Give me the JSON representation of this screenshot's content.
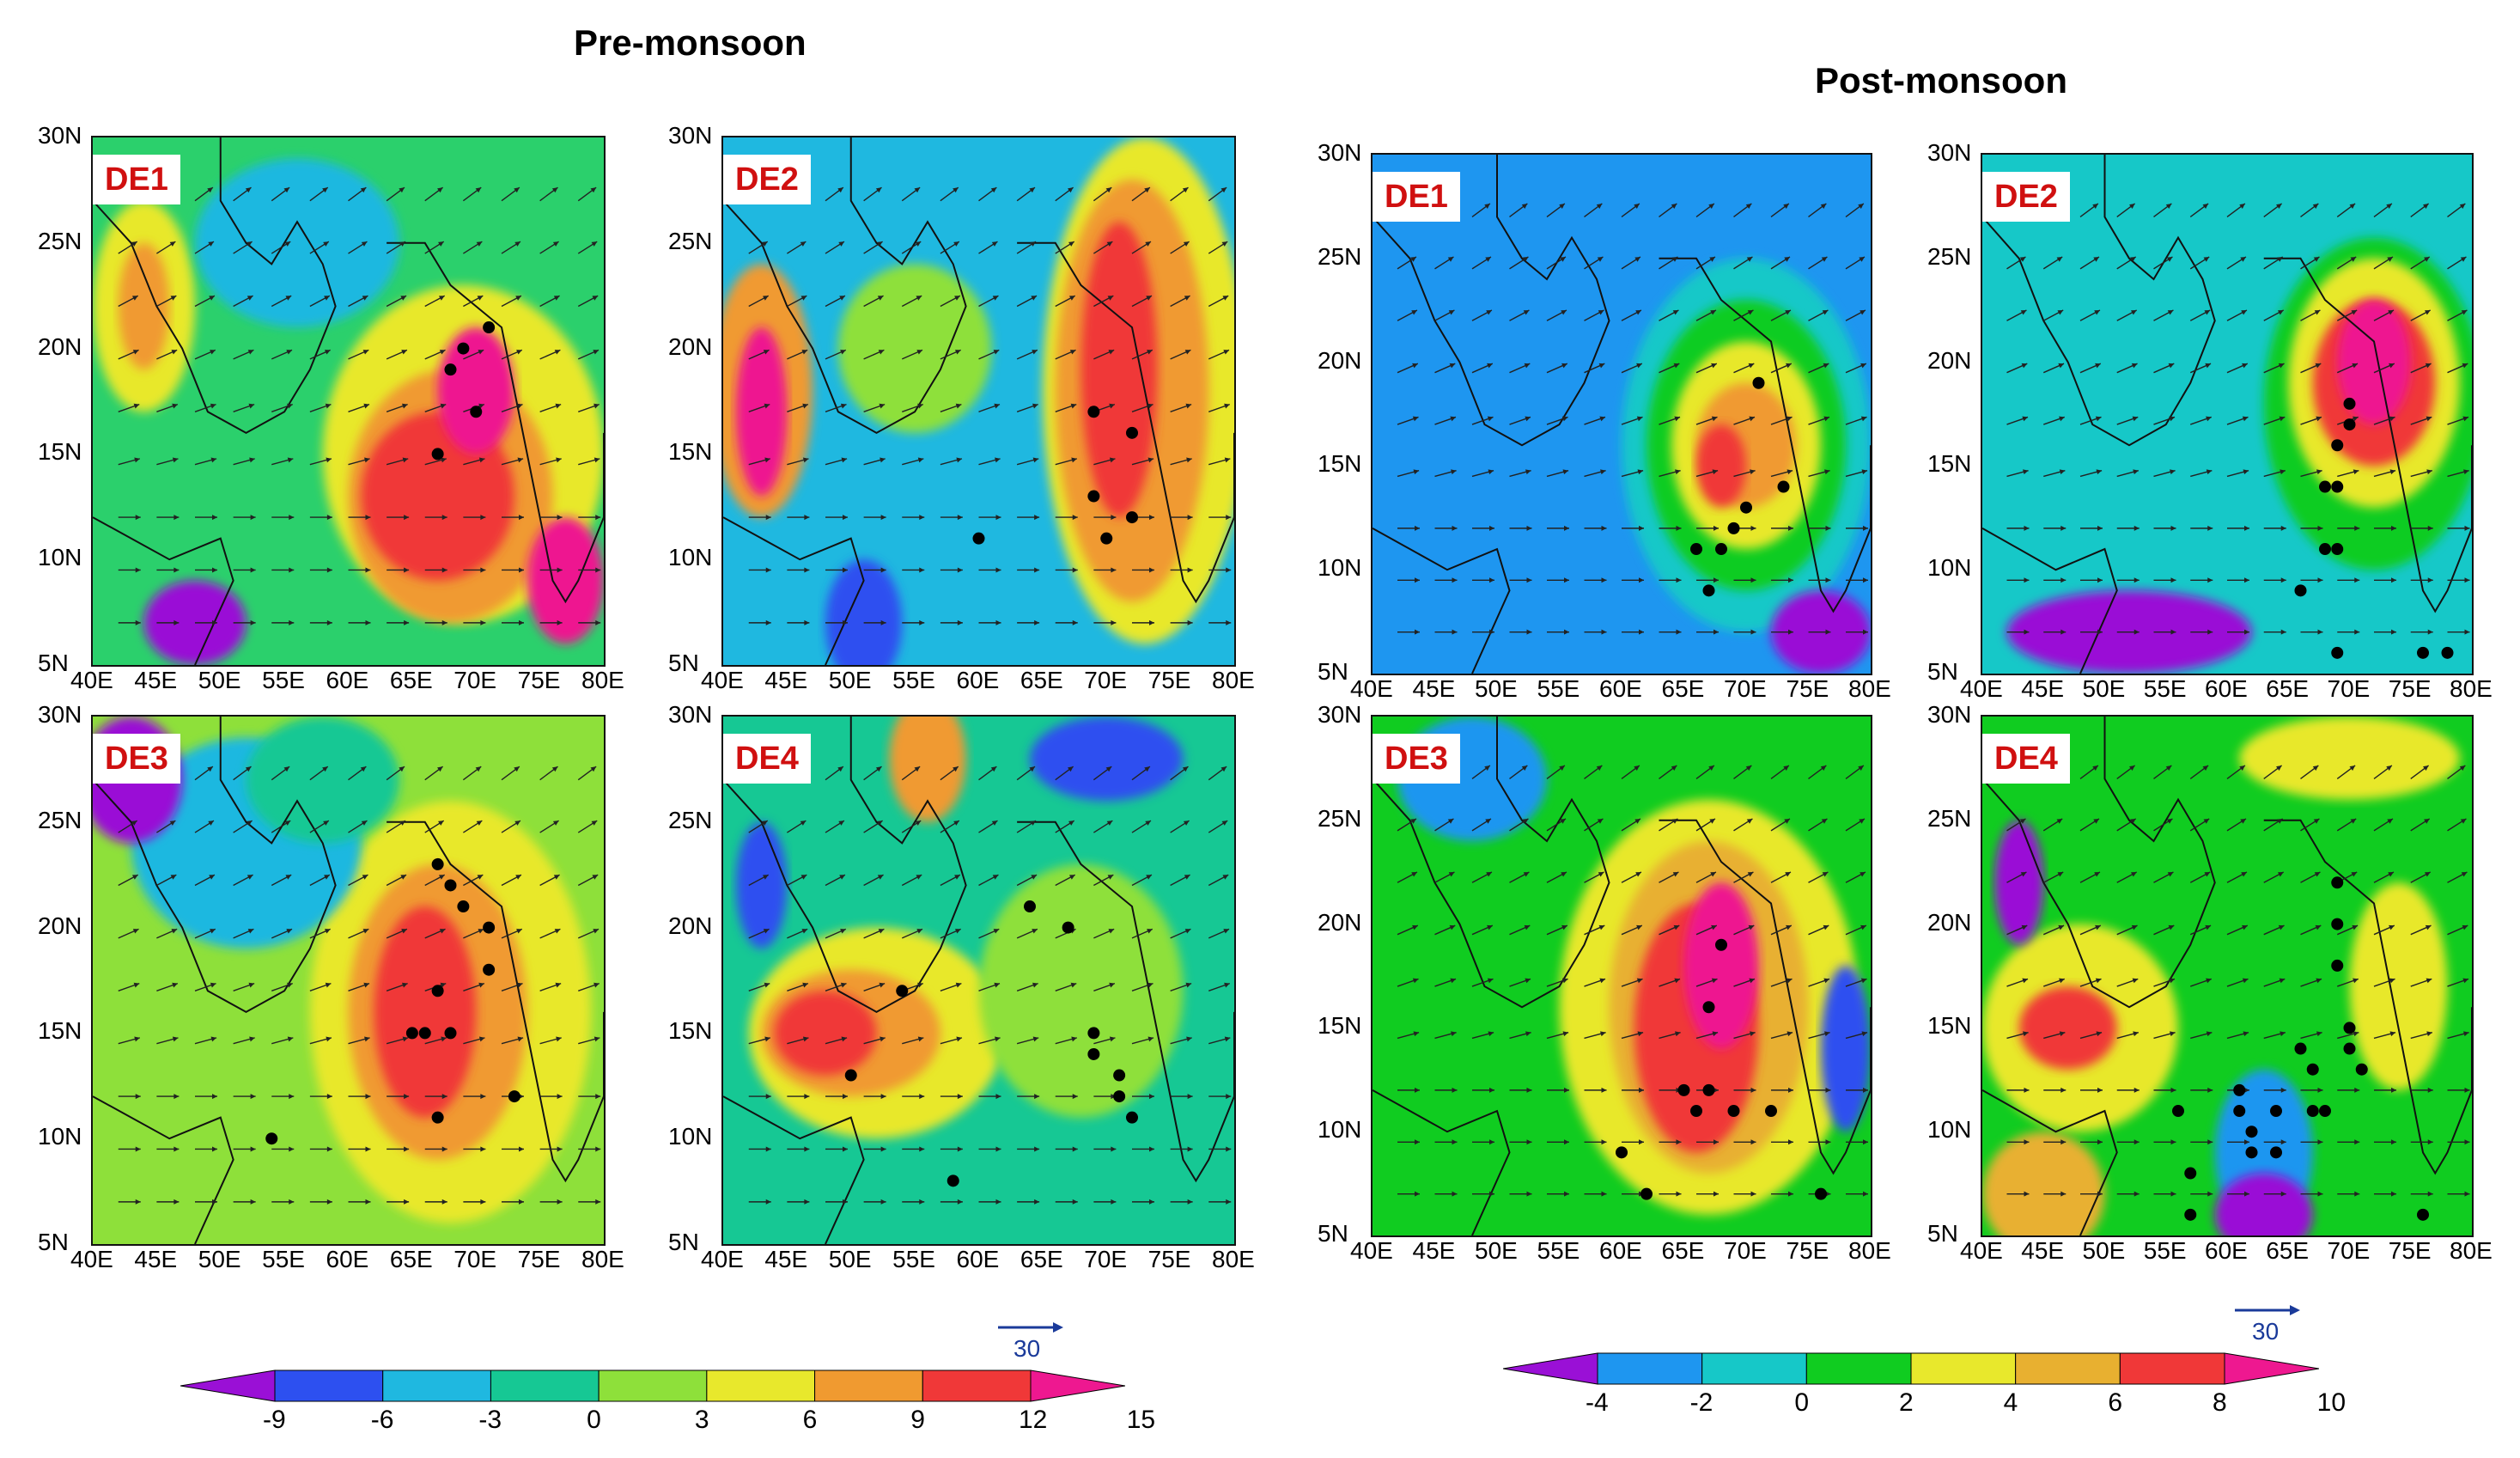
{
  "titles": {
    "pre": "Pre-monsoon",
    "post": "Post-monsoon"
  },
  "x_ticks": [
    "40E",
    "45E",
    "50E",
    "55E",
    "60E",
    "65E",
    "70E",
    "75E",
    "80E"
  ],
  "y_ticks": [
    "30N",
    "25N",
    "20N",
    "15N",
    "10N",
    "5N"
  ],
  "lon_range": [
    40,
    80
  ],
  "lat_range": [
    5,
    30
  ],
  "reference_vector": {
    "label": "30"
  },
  "colorbars": {
    "pre": {
      "labels": [
        "-9",
        "-6",
        "-3",
        "0",
        "3",
        "6",
        "9",
        "12",
        "15"
      ],
      "colors": [
        "#9a10d6",
        "#2d50f0",
        "#1fb8e0",
        "#16c894",
        "#8ee03a",
        "#e8e82c",
        "#f09a30",
        "#f03838",
        "#ee1890"
      ]
    },
    "post": {
      "labels": [
        "-4",
        "-2",
        "0",
        "2",
        "4",
        "6",
        "8",
        "10"
      ],
      "colors": [
        "#9a10d6",
        "#1e96f0",
        "#16c8c8",
        "#10cc20",
        "#e8e82c",
        "#e8b030",
        "#f03838",
        "#ee1890"
      ]
    }
  },
  "panels": [
    {
      "label": "DE1",
      "group": "pre",
      "background": "#2bd06c",
      "blobs": [
        {
          "lon": 69,
          "lat": 15,
          "rx": 11,
          "ry": 8,
          "color": "#e8e82c"
        },
        {
          "lon": 68,
          "lat": 13,
          "rx": 8,
          "ry": 6,
          "color": "#f09a30"
        },
        {
          "lon": 67,
          "lat": 13,
          "rx": 6,
          "ry": 4,
          "color": "#f03838"
        },
        {
          "lon": 70,
          "lat": 18,
          "rx": 3,
          "ry": 3,
          "color": "#ee1890"
        },
        {
          "lon": 77,
          "lat": 9,
          "rx": 3,
          "ry": 3,
          "color": "#ee1890"
        },
        {
          "lon": 44,
          "lat": 22,
          "rx": 4,
          "ry": 5,
          "color": "#e8e82c"
        },
        {
          "lon": 44,
          "lat": 22,
          "rx": 2,
          "ry": 3,
          "color": "#f09a30"
        },
        {
          "lon": 56,
          "lat": 25,
          "rx": 8,
          "ry": 4,
          "color": "#1fb8e0"
        },
        {
          "lon": 48,
          "lat": 7,
          "rx": 4,
          "ry": 2,
          "color": "#9a10d6"
        }
      ],
      "dots": [
        [
          67,
          15
        ],
        [
          68,
          19
        ],
        [
          69,
          20
        ],
        [
          71,
          21
        ],
        [
          70,
          17
        ]
      ]
    },
    {
      "label": "DE2",
      "group": "pre",
      "background": "#1fb8e0",
      "blobs": [
        {
          "lon": 73,
          "lat": 18,
          "rx": 8,
          "ry": 12,
          "color": "#e8e82c"
        },
        {
          "lon": 72,
          "lat": 18,
          "rx": 6,
          "ry": 10,
          "color": "#f09a30"
        },
        {
          "lon": 71,
          "lat": 19,
          "rx": 3,
          "ry": 7,
          "color": "#f03838"
        },
        {
          "lon": 43,
          "lat": 18,
          "rx": 4,
          "ry": 6,
          "color": "#f09a30"
        },
        {
          "lon": 43,
          "lat": 17,
          "rx": 2,
          "ry": 4,
          "color": "#ee1890"
        },
        {
          "lon": 55,
          "lat": 20,
          "rx": 6,
          "ry": 4,
          "color": "#8ee03a"
        },
        {
          "lon": 51,
          "lat": 7,
          "rx": 3,
          "ry": 3,
          "color": "#2d50f0"
        }
      ],
      "dots": [
        [
          69,
          17
        ],
        [
          72,
          16
        ],
        [
          69,
          13
        ],
        [
          72,
          12
        ],
        [
          70,
          11
        ],
        [
          60,
          11
        ]
      ]
    },
    {
      "label": "DE3",
      "group": "pre",
      "background": "#8ee03a",
      "blobs": [
        {
          "lon": 68,
          "lat": 16,
          "rx": 11,
          "ry": 10,
          "color": "#e8e82c"
        },
        {
          "lon": 67,
          "lat": 16,
          "rx": 7,
          "ry": 7,
          "color": "#f09a30"
        },
        {
          "lon": 66,
          "lat": 16,
          "rx": 4,
          "ry": 5,
          "color": "#f03838"
        },
        {
          "lon": 52,
          "lat": 24,
          "rx": 9,
          "ry": 5,
          "color": "#1fb8e0"
        },
        {
          "lon": 43,
          "lat": 27,
          "rx": 4,
          "ry": 3,
          "color": "#9a10d6"
        },
        {
          "lon": 58,
          "lat": 27,
          "rx": 6,
          "ry": 3,
          "color": "#16c894"
        }
      ],
      "dots": [
        [
          67,
          23
        ],
        [
          68,
          22
        ],
        [
          69,
          21
        ],
        [
          71,
          20
        ],
        [
          71,
          18
        ],
        [
          67,
          17
        ],
        [
          66,
          15
        ],
        [
          65,
          15
        ],
        [
          68,
          15
        ],
        [
          67,
          11
        ],
        [
          73,
          12
        ],
        [
          54,
          10
        ]
      ]
    },
    {
      "label": "DE4",
      "group": "pre",
      "background": "#16c894",
      "blobs": [
        {
          "lon": 52,
          "lat": 15,
          "rx": 10,
          "ry": 5,
          "color": "#e8e82c"
        },
        {
          "lon": 50,
          "lat": 15,
          "rx": 7,
          "ry": 3,
          "color": "#f09a30"
        },
        {
          "lon": 48,
          "lat": 15,
          "rx": 4,
          "ry": 2,
          "color": "#f03838"
        },
        {
          "lon": 68,
          "lat": 17,
          "rx": 8,
          "ry": 6,
          "color": "#8ee03a"
        },
        {
          "lon": 43,
          "lat": 22,
          "rx": 2,
          "ry": 3,
          "color": "#2d50f0"
        },
        {
          "lon": 70,
          "lat": 28,
          "rx": 6,
          "ry": 2,
          "color": "#2d50f0"
        },
        {
          "lon": 56,
          "lat": 28,
          "rx": 3,
          "ry": 3,
          "color": "#f09a30"
        }
      ],
      "dots": [
        [
          54,
          17
        ],
        [
          64,
          21
        ],
        [
          67,
          20
        ],
        [
          69,
          15
        ],
        [
          69,
          14
        ],
        [
          71,
          13
        ],
        [
          71,
          12
        ],
        [
          72,
          11
        ],
        [
          50,
          13
        ],
        [
          58,
          8
        ]
      ]
    },
    {
      "label": "DE1",
      "group": "post",
      "background": "#1e96f0",
      "blobs": [
        {
          "lon": 70,
          "lat": 16,
          "rx": 10,
          "ry": 9,
          "color": "#16c8c8"
        },
        {
          "lon": 70,
          "lat": 16,
          "rx": 8,
          "ry": 7,
          "color": "#10cc20"
        },
        {
          "lon": 70,
          "lat": 16,
          "rx": 6,
          "ry": 5,
          "color": "#e8e82c"
        },
        {
          "lon": 70,
          "lat": 16,
          "rx": 4,
          "ry": 3,
          "color": "#f09a30"
        },
        {
          "lon": 68,
          "lat": 15,
          "rx": 2,
          "ry": 2,
          "color": "#f03838"
        },
        {
          "lon": 76,
          "lat": 7,
          "rx": 4,
          "ry": 2,
          "color": "#9a10d6"
        }
      ],
      "dots": [
        [
          71,
          19
        ],
        [
          73,
          14
        ],
        [
          70,
          13
        ],
        [
          69,
          12
        ],
        [
          68,
          11
        ],
        [
          66,
          11
        ],
        [
          67,
          9
        ]
      ]
    },
    {
      "label": "DE2",
      "group": "post",
      "background": "#16c8c8",
      "blobs": [
        {
          "lon": 72,
          "lat": 18,
          "rx": 9,
          "ry": 8,
          "color": "#10cc20"
        },
        {
          "lon": 72,
          "lat": 19,
          "rx": 7,
          "ry": 6,
          "color": "#e8e82c"
        },
        {
          "lon": 72,
          "lat": 19,
          "rx": 5,
          "ry": 4,
          "color": "#f03838"
        },
        {
          "lon": 72,
          "lat": 20,
          "rx": 3,
          "ry": 3,
          "color": "#ee1890"
        },
        {
          "lon": 52,
          "lat": 7,
          "rx": 10,
          "ry": 2,
          "color": "#9a10d6"
        }
      ],
      "dots": [
        [
          70,
          18
        ],
        [
          70,
          17
        ],
        [
          69,
          16
        ],
        [
          68,
          14
        ],
        [
          69,
          14
        ],
        [
          69,
          11
        ],
        [
          68,
          11
        ],
        [
          66,
          9
        ],
        [
          69,
          6
        ],
        [
          76,
          6
        ],
        [
          78,
          6
        ]
      ]
    },
    {
      "label": "DE3",
      "group": "post",
      "background": "#10cc20",
      "blobs": [
        {
          "lon": 67,
          "lat": 16,
          "rx": 12,
          "ry": 10,
          "color": "#e8e82c"
        },
        {
          "lon": 67,
          "lat": 16,
          "rx": 8,
          "ry": 8,
          "color": "#e8b030"
        },
        {
          "lon": 66,
          "lat": 15,
          "rx": 5,
          "ry": 6,
          "color": "#f03838"
        },
        {
          "lon": 68,
          "lat": 18,
          "rx": 3,
          "ry": 4,
          "color": "#ee1890"
        },
        {
          "lon": 48,
          "lat": 27,
          "rx": 6,
          "ry": 3,
          "color": "#1e96f0"
        },
        {
          "lon": 78,
          "lat": 14,
          "rx": 2,
          "ry": 4,
          "color": "#2d50f0"
        }
      ],
      "dots": [
        [
          68,
          19
        ],
        [
          67,
          16
        ],
        [
          67,
          12
        ],
        [
          65,
          12
        ],
        [
          66,
          11
        ],
        [
          69,
          11
        ],
        [
          72,
          11
        ],
        [
          60,
          9
        ],
        [
          62,
          7
        ],
        [
          76,
          7
        ]
      ]
    },
    {
      "label": "DE4",
      "group": "post",
      "background": "#10cc20",
      "blobs": [
        {
          "lon": 48,
          "lat": 15,
          "rx": 8,
          "ry": 5,
          "color": "#e8e82c"
        },
        {
          "lon": 47,
          "lat": 15,
          "rx": 4,
          "ry": 2,
          "color": "#f03838"
        },
        {
          "lon": 70,
          "lat": 28,
          "rx": 9,
          "ry": 2,
          "color": "#e8e82c"
        },
        {
          "lon": 74,
          "lat": 17,
          "rx": 4,
          "ry": 5,
          "color": "#e8e82c"
        },
        {
          "lon": 63,
          "lat": 9,
          "rx": 4,
          "ry": 4,
          "color": "#1e96f0"
        },
        {
          "lon": 63,
          "lat": 6,
          "rx": 4,
          "ry": 2,
          "color": "#9a10d6"
        },
        {
          "lon": 43,
          "lat": 22,
          "rx": 2,
          "ry": 3,
          "color": "#9a10d6"
        },
        {
          "lon": 45,
          "lat": 7,
          "rx": 5,
          "ry": 3,
          "color": "#e8b030"
        }
      ],
      "dots": [
        [
          69,
          22
        ],
        [
          69,
          20
        ],
        [
          69,
          18
        ],
        [
          70,
          15
        ],
        [
          70,
          14
        ],
        [
          71,
          13
        ],
        [
          66,
          14
        ],
        [
          67,
          13
        ],
        [
          68,
          11
        ],
        [
          67,
          11
        ],
        [
          64,
          11
        ],
        [
          61,
          12
        ],
        [
          61,
          11
        ],
        [
          62,
          10
        ],
        [
          62,
          9
        ],
        [
          64,
          9
        ],
        [
          57,
          8
        ],
        [
          57,
          6
        ],
        [
          56,
          11
        ],
        [
          76,
          6
        ]
      ]
    }
  ]
}
